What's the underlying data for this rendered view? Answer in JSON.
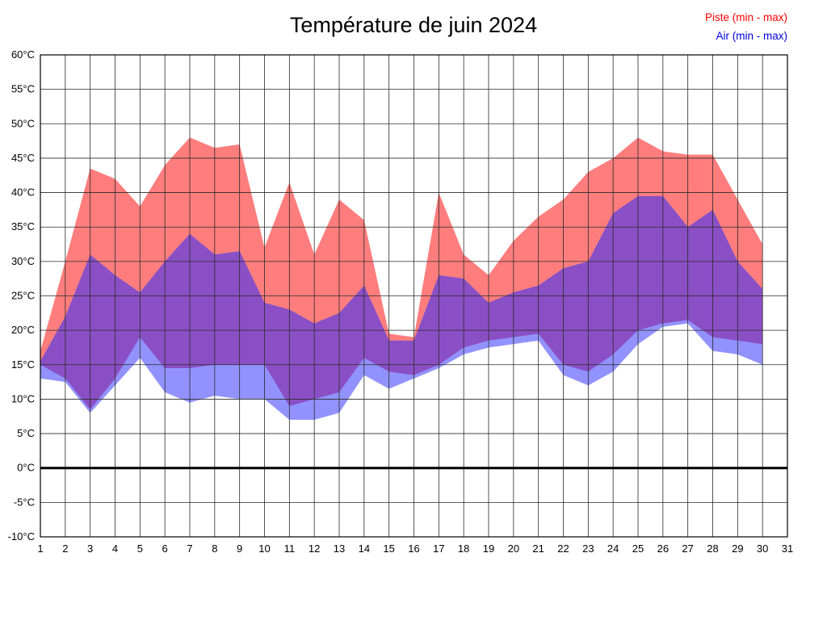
{
  "chart_data": {
    "type": "area",
    "title": "Température de juin 2024",
    "legend": [
      {
        "label": "Piste (min - max)",
        "color": "#ff0000"
      },
      {
        "label": "Air (min - max)",
        "color": "#0000dd"
      }
    ],
    "x": [
      1,
      2,
      3,
      4,
      5,
      6,
      7,
      8,
      9,
      10,
      11,
      12,
      13,
      14,
      15,
      16,
      17,
      18,
      19,
      20,
      21,
      22,
      23,
      24,
      25,
      26,
      27,
      28,
      29,
      30
    ],
    "xlim": [
      1,
      31
    ],
    "x_ticks": [
      1,
      2,
      3,
      4,
      5,
      6,
      7,
      8,
      9,
      10,
      11,
      12,
      13,
      14,
      15,
      16,
      17,
      18,
      19,
      20,
      21,
      22,
      23,
      24,
      25,
      26,
      27,
      28,
      29,
      30,
      31
    ],
    "ylim": [
      -10,
      60
    ],
    "y_ticks": [
      60,
      55,
      50,
      45,
      40,
      35,
      30,
      25,
      20,
      15,
      10,
      5,
      0,
      -5,
      -10
    ],
    "y_tick_suffix": "°C",
    "grid": true,
    "legend_position": "top-right",
    "series": [
      {
        "name": "piste_max",
        "values": [
          17,
          30,
          43.5,
          42,
          38,
          44,
          48,
          46.5,
          47,
          32,
          41.5,
          31,
          39,
          36,
          19.5,
          19,
          40,
          31,
          28,
          33,
          36.5,
          39,
          43,
          45,
          48,
          46,
          45.5,
          45.5,
          39,
          32.5
        ]
      },
      {
        "name": "piste_min",
        "values": [
          15,
          13,
          8.5,
          13,
          19,
          14.5,
          14.5,
          15,
          15,
          15,
          9,
          10,
          11,
          16,
          14,
          13.5,
          15,
          17.5,
          18.5,
          19,
          19.5,
          15,
          14,
          16.5,
          20,
          21,
          21.5,
          19,
          18.5,
          18
        ]
      },
      {
        "name": "air_max",
        "values": [
          15.5,
          22,
          31,
          28,
          25.5,
          30,
          34,
          31,
          31.5,
          24,
          23,
          21,
          22.5,
          26.5,
          18.5,
          18.5,
          28,
          27.5,
          24,
          25.5,
          26.5,
          29,
          30,
          37,
          39.5,
          39.5,
          35,
          37.5,
          30,
          26
        ]
      },
      {
        "name": "air_min",
        "values": [
          13,
          12.5,
          8,
          12,
          16,
          11,
          9.5,
          10.5,
          10,
          10,
          7,
          7,
          8,
          13.5,
          11.5,
          13,
          14.5,
          16.5,
          17.5,
          18,
          18.5,
          13.5,
          12,
          14,
          18,
          20.5,
          21,
          17,
          16.5,
          15
        ]
      }
    ],
    "colors": {
      "piste_band": "#ff7d7d",
      "air_band": "#9292ff",
      "overlap_band": "#8a4fc4",
      "grid": "#2a2a2a",
      "zero_line": "#000000",
      "text": "#000000",
      "background": "#ffffff"
    }
  }
}
